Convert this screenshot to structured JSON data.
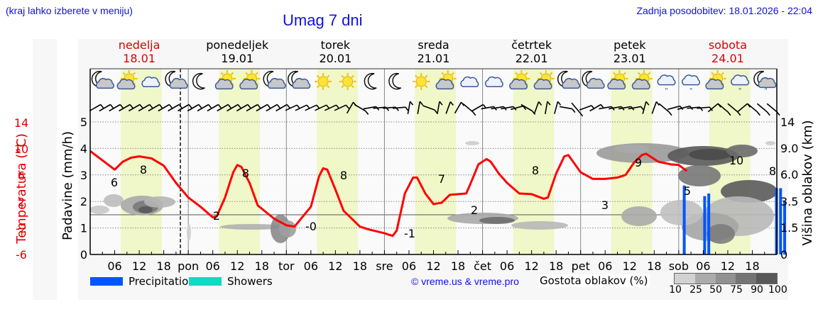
{
  "header": {
    "location_hint": "(kraj lahko izberete v meniju)",
    "title": "Umag 7 dni",
    "last_update": "Zadnja posodobitev: 18.01.2026 - 22:04"
  },
  "days": [
    {
      "name": "nedelja",
      "date": "18.01",
      "weekend": true
    },
    {
      "name": "ponedeljek",
      "date": "19.01",
      "weekend": false
    },
    {
      "name": "torek",
      "date": "20.01",
      "weekend": false
    },
    {
      "name": "sreda",
      "date": "21.01",
      "weekend": false
    },
    {
      "name": "četrtek",
      "date": "22.01",
      "weekend": false
    },
    {
      "name": "petek",
      "date": "23.01",
      "weekend": false
    },
    {
      "name": "sobota",
      "date": "24.01",
      "weekend": true
    }
  ],
  "weather_icons": [
    "moon-cloud",
    "sun-cloud",
    "cloud",
    "moon-cloud",
    "moon",
    "sun-cloud",
    "sun-cloud",
    "moon-cloud",
    "moon-cloud",
    "sun",
    "sun",
    "moon",
    "moon",
    "sun",
    "sun-cloud",
    "cloud",
    "cloud",
    "sun-cloud",
    "sun-cloud",
    "moon-cloud",
    "moon-cloud",
    "sun-cloud",
    "sun-cloud",
    "rain-cloud",
    "rain-cloud",
    "sun-cloud",
    "rain-cloud",
    "moon-rain-cloud"
  ],
  "axes": {
    "temp_label": "Temperatura (°C)",
    "temp_ticks": [
      "14",
      "10",
      "6",
      "2",
      "-2",
      "-6"
    ],
    "precip_label": "Padavine (mm/h)",
    "precip_ticks": [
      "5",
      "4",
      "3",
      "2",
      "1",
      "0"
    ],
    "cloud_label": "Višina oblakov (km)",
    "cloud_ticks": [
      "14",
      "9.0",
      "6.0",
      "3.5",
      "1.5",
      "0"
    ],
    "x_ticks": [
      "06",
      "12",
      "18",
      "pon",
      "06",
      "12",
      "18",
      "tor",
      "06",
      "12",
      "18",
      "sre",
      "06",
      "12",
      "18",
      "čet",
      "06",
      "12",
      "18",
      "pet",
      "06",
      "12",
      "18",
      "sob",
      "06",
      "12",
      "18"
    ]
  },
  "legend": {
    "precipitation": "Precipitation",
    "showers": "Showers",
    "credit": "© vreme.us & vreme.pro",
    "cloud_density_label": "Gostota oblakov (%)",
    "cloud_density_ticks": [
      "10",
      "25",
      "50",
      "75",
      "90",
      "100"
    ]
  },
  "colors": {
    "temperature": "#ff0000",
    "precipitation": "#0055ff",
    "showers": "#11d9c4",
    "daylight": "#f0f7c8",
    "title_blue": "#1010e0",
    "weekend_red": "#dd0000"
  },
  "chart_data": {
    "type": "line",
    "title": "Umag 7 dni",
    "xlabel": "",
    "ylabel": "Temperatura (°C)",
    "ylim_temp": [
      -6,
      16
    ],
    "ylim_precip": [
      0,
      5.2
    ],
    "x_hours_start": "18.01 00:00",
    "x_hours_end": "25.01 00:00",
    "series": [
      {
        "name": "Temperatura",
        "unit": "°C",
        "points": [
          [
            0,
            9.6
          ],
          [
            3,
            8.2
          ],
          [
            6,
            6.8
          ],
          [
            8,
            8.0
          ],
          [
            10,
            8.6
          ],
          [
            12,
            8.8
          ],
          [
            15,
            8.5
          ],
          [
            18,
            7.4
          ],
          [
            21,
            4.8
          ],
          [
            24,
            2.6
          ],
          [
            27,
            1.2
          ],
          [
            30,
            -0.4
          ],
          [
            31,
            -0.2
          ],
          [
            33,
            2.6
          ],
          [
            35,
            6.4
          ],
          [
            36,
            7.5
          ],
          [
            37,
            7.2
          ],
          [
            39,
            4.8
          ],
          [
            41,
            1.4
          ],
          [
            45,
            -0.6
          ],
          [
            48,
            -1.6
          ],
          [
            50,
            -1.8
          ],
          [
            54,
            1.2
          ],
          [
            56,
            5.8
          ],
          [
            57,
            7.0
          ],
          [
            58,
            6.8
          ],
          [
            60,
            3.8
          ],
          [
            62,
            0.6
          ],
          [
            66,
            -1.8
          ],
          [
            68,
            -2.2
          ],
          [
            72,
            -2.8
          ],
          [
            74,
            -3.2
          ],
          [
            75,
            -2.4
          ],
          [
            77,
            3.2
          ],
          [
            79,
            5.6
          ],
          [
            80,
            5.6
          ],
          [
            82,
            3.2
          ],
          [
            84,
            1.6
          ],
          [
            86,
            1.8
          ],
          [
            88,
            3.0
          ],
          [
            92,
            3.2
          ],
          [
            93,
            4.6
          ],
          [
            95,
            7.6
          ],
          [
            97,
            8.4
          ],
          [
            98,
            8.0
          ],
          [
            100,
            6.2
          ],
          [
            102,
            4.8
          ],
          [
            105,
            3.2
          ],
          [
            108,
            3.1
          ],
          [
            111,
            2.4
          ],
          [
            112,
            2.6
          ],
          [
            114,
            6.2
          ],
          [
            116,
            8.8
          ],
          [
            117,
            9.0
          ],
          [
            120,
            6.4
          ],
          [
            123,
            5.4
          ],
          [
            126,
            5.4
          ],
          [
            129,
            5.6
          ],
          [
            131,
            6.0
          ],
          [
            133,
            7.8
          ],
          [
            135,
            9.0
          ],
          [
            136,
            9.2
          ],
          [
            139,
            8.0
          ],
          [
            142,
            7.6
          ],
          [
            144,
            7.5
          ],
          [
            146,
            6.6
          ]
        ],
        "labels": [
          {
            "h": 3,
            "v": "6"
          },
          {
            "h": 10,
            "v": "8"
          },
          {
            "h": 30,
            "v": "2"
          },
          {
            "h": 37,
            "v": "8"
          },
          {
            "h": 54,
            "v": "-0"
          },
          {
            "h": 61,
            "v": "8"
          },
          {
            "h": 78,
            "v": "-1"
          },
          {
            "h": 85,
            "v": "7"
          },
          {
            "h": 102,
            "v": "2"
          },
          {
            "h": 109,
            "v": "8"
          },
          {
            "h": 125,
            "v": "3"
          },
          {
            "h": 133,
            "v": "9"
          },
          {
            "h": 146,
            "v": "5"
          },
          {
            "h": 156,
            "v": "10"
          },
          {
            "h": 166,
            "v": "8"
          }
        ]
      },
      {
        "name": "Precipitation",
        "unit": "mm/h",
        "type": "bar",
        "bars": [
          {
            "h": 145,
            "v": 2.6
          },
          {
            "h": 150,
            "v": 2.2
          },
          {
            "h": 151,
            "v": 2.3
          },
          {
            "h": 170,
            "v": 2.5
          },
          {
            "h": 171,
            "v": 2.5
          },
          {
            "h": 172,
            "v": 2.0
          }
        ]
      }
    ],
    "daylight_bands_hours": [
      [
        7.5,
        17.5
      ],
      [
        31.5,
        41.5
      ],
      [
        55.5,
        65.5
      ],
      [
        79.5,
        89.5
      ],
      [
        103.5,
        113.5
      ],
      [
        127.5,
        137.5
      ],
      [
        151.5,
        161.5
      ]
    ],
    "now_marker_hour": 22.07,
    "grid": true,
    "legend_position": "bottom"
  }
}
